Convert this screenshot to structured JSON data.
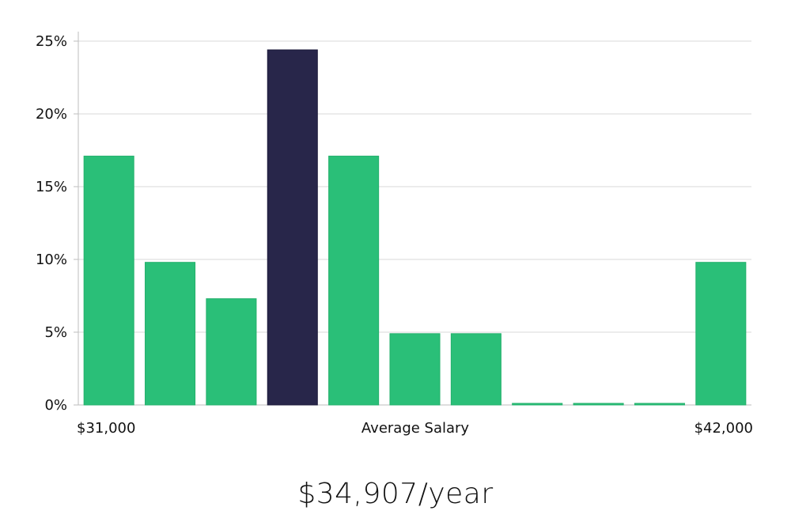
{
  "colors": {
    "bar": "#2ABF78",
    "highlight": "#28264A",
    "grid": "#DADADA",
    "axis": "#BDBDBD"
  },
  "chart_data": {
    "type": "bar",
    "title": "",
    "xlabel": "Average Salary",
    "ylabel": "",
    "x_range_labels": {
      "min": "$31,000",
      "max": "$42,000"
    },
    "ylim": [
      0,
      25
    ],
    "yticks": [
      0,
      5,
      10,
      15,
      20,
      25
    ],
    "ytick_labels": [
      "0%",
      "5%",
      "10%",
      "15%",
      "20%",
      "25%"
    ],
    "values": [
      17.1,
      9.8,
      7.3,
      24.4,
      17.1,
      4.9,
      4.9,
      0,
      0,
      0,
      9.8
    ],
    "highlight_index": 3,
    "grid": true
  },
  "summary": {
    "salary": "$34,907/year"
  }
}
